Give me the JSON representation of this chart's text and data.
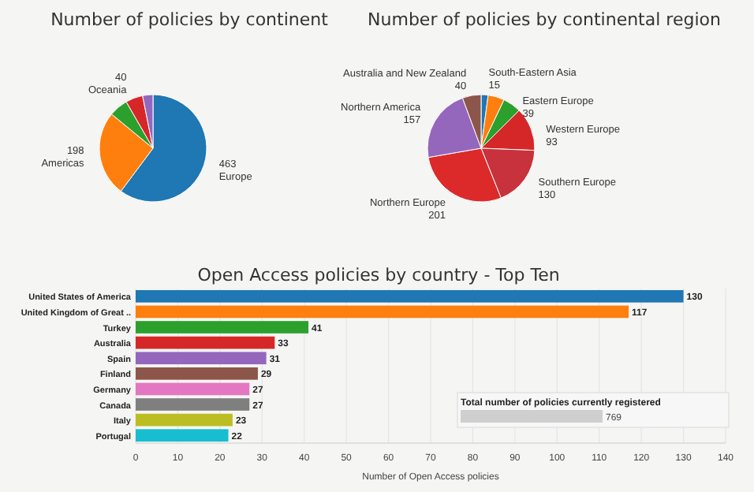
{
  "chart_data": [
    {
      "type": "pie",
      "title": "Number of policies by continent",
      "categories": [
        "Europe",
        "Americas",
        null,
        "Oceania",
        null
      ],
      "values": [
        463,
        198,
        44,
        40,
        24
      ],
      "colors": [
        "#1f77b4",
        "#ff7f0e",
        "#2ca02c",
        "#d62728",
        "#9467bd"
      ],
      "value_labels": [
        "463",
        "198",
        null,
        "40",
        null
      ]
    },
    {
      "type": "pie",
      "title": "Number of policies by continental region",
      "categories": [
        "South-Eastern Asia",
        null,
        "Eastern Europe",
        "Western Europe",
        "Southern Europe",
        "Northern Europe",
        "Northern America",
        "Australia and New Zealand"
      ],
      "values": [
        15,
        35,
        39,
        93,
        130,
        201,
        157,
        40
      ],
      "colors": [
        "#1f77b4",
        "#ff7f0e",
        "#2ca02c",
        "#d62728",
        "#c8323c",
        "#dc2a2a",
        "#9467bd",
        "#8c564b"
      ],
      "value_labels": [
        "15",
        null,
        "39",
        "93",
        "130",
        "201",
        "157",
        "40"
      ]
    },
    {
      "type": "bar",
      "orientation": "horizontal",
      "title": "Open Access policies by country - Top Ten",
      "xlabel": "Number of Open Access policies",
      "categories": [
        "United States of America",
        "United Kingdom of Great ..",
        "Turkey",
        "Australia",
        "Spain",
        "Finland",
        "Germany",
        "Canada",
        "Italy",
        "Portugal"
      ],
      "values": [
        130,
        117,
        41,
        33,
        31,
        29,
        27,
        27,
        23,
        22
      ],
      "colors": [
        "#1f77b4",
        "#ff7f0e",
        "#2ca02c",
        "#d62728",
        "#9467bd",
        "#8c564b",
        "#e377c2",
        "#7f7f7f",
        "#bcbd22",
        "#17becf"
      ],
      "xlim": [
        0,
        140
      ],
      "xticks": [
        0,
        10,
        20,
        30,
        40,
        50,
        60,
        70,
        80,
        90,
        100,
        110,
        120,
        130,
        140
      ],
      "grid": "x",
      "data_labels": true,
      "annotations": [
        "Total number of policies currently registered",
        "769"
      ]
    }
  ]
}
